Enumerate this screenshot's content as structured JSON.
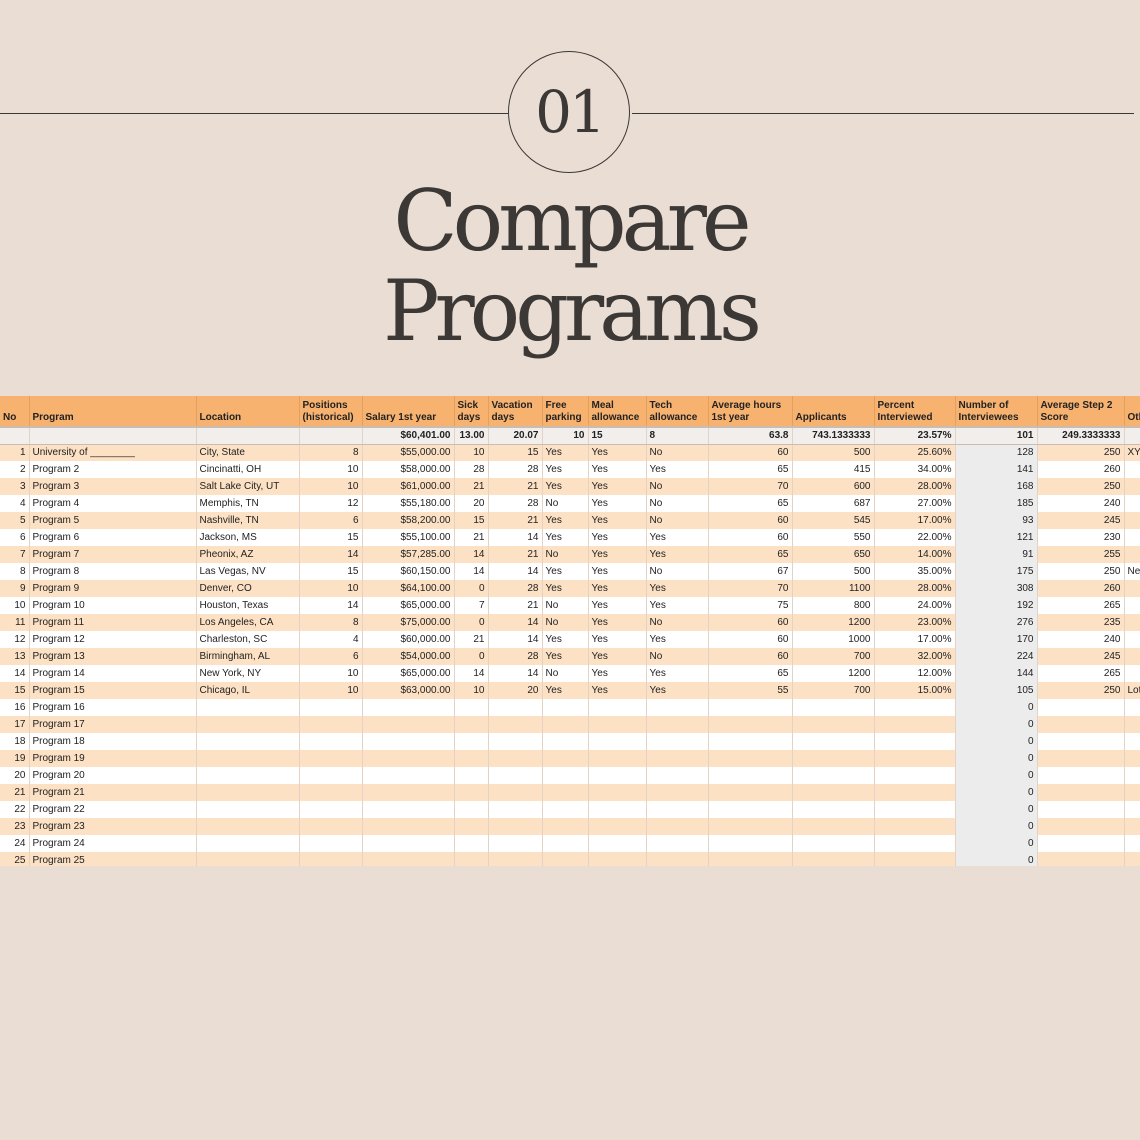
{
  "badge": "01",
  "title_line1": "Compare",
  "title_line2": "Programs",
  "table": {
    "headers": [
      "No",
      "Program",
      "Location",
      "Positions (historical)",
      "Salary 1st year",
      "Sick days",
      "Vacation days",
      "Free parking",
      "Meal allowance",
      "Tech allowance",
      "Average hours 1st year",
      "Applicants",
      "Percent Interviewed",
      "Number of Interviewees",
      "Average Step 2 Score",
      "Oth"
    ],
    "averages": [
      "",
      "",
      "",
      "",
      "$60,401.00",
      "13.00",
      "20.07",
      "10",
      "15",
      "8",
      "63.8",
      "743.1333333",
      "23.57%",
      "101",
      "249.3333333",
      ""
    ],
    "rows": [
      [
        "1",
        "University of ________",
        "City, State",
        "8",
        "$55,000.00",
        "10",
        "15",
        "Yes",
        "Yes",
        "No",
        "60",
        "500",
        "25.60%",
        "128",
        "250",
        "XY"
      ],
      [
        "2",
        "Program 2",
        "Cincinatti, OH",
        "10",
        "$58,000.00",
        "28",
        "28",
        "Yes",
        "Yes",
        "Yes",
        "65",
        "415",
        "34.00%",
        "141",
        "260",
        ""
      ],
      [
        "3",
        "Program 3",
        "Salt Lake City, UT",
        "10",
        "$61,000.00",
        "21",
        "21",
        "Yes",
        "Yes",
        "No",
        "70",
        "600",
        "28.00%",
        "168",
        "250",
        ""
      ],
      [
        "4",
        "Program 4",
        "Memphis, TN",
        "12",
        "$55,180.00",
        "20",
        "28",
        "No",
        "Yes",
        "No",
        "65",
        "687",
        "27.00%",
        "185",
        "240",
        ""
      ],
      [
        "5",
        "Program 5",
        "Nashville, TN",
        "6",
        "$58,200.00",
        "15",
        "21",
        "Yes",
        "Yes",
        "No",
        "60",
        "545",
        "17.00%",
        "93",
        "245",
        ""
      ],
      [
        "6",
        "Program 6",
        "Jackson, MS",
        "15",
        "$55,100.00",
        "21",
        "14",
        "Yes",
        "Yes",
        "Yes",
        "60",
        "550",
        "22.00%",
        "121",
        "230",
        ""
      ],
      [
        "7",
        "Program 7",
        "Pheonix, AZ",
        "14",
        "$57,285.00",
        "14",
        "21",
        "No",
        "Yes",
        "Yes",
        "65",
        "650",
        "14.00%",
        "91",
        "255",
        ""
      ],
      [
        "8",
        "Program 8",
        "Las Vegas, NV",
        "15",
        "$60,150.00",
        "14",
        "14",
        "Yes",
        "Yes",
        "No",
        "67",
        "500",
        "35.00%",
        "175",
        "250",
        "Ne"
      ],
      [
        "9",
        "Program 9",
        "Denver, CO",
        "10",
        "$64,100.00",
        "0",
        "28",
        "Yes",
        "Yes",
        "Yes",
        "70",
        "1100",
        "28.00%",
        "308",
        "260",
        ""
      ],
      [
        "10",
        "Program 10",
        "Houston, Texas",
        "14",
        "$65,000.00",
        "7",
        "21",
        "No",
        "Yes",
        "Yes",
        "75",
        "800",
        "24.00%",
        "192",
        "265",
        ""
      ],
      [
        "11",
        "Program 11",
        "Los Angeles, CA",
        "8",
        "$75,000.00",
        "0",
        "14",
        "No",
        "Yes",
        "No",
        "60",
        "1200",
        "23.00%",
        "276",
        "235",
        ""
      ],
      [
        "12",
        "Program 12",
        "Charleston, SC",
        "4",
        "$60,000.00",
        "21",
        "14",
        "Yes",
        "Yes",
        "Yes",
        "60",
        "1000",
        "17.00%",
        "170",
        "240",
        ""
      ],
      [
        "13",
        "Program 13",
        "Birmingham, AL",
        "6",
        "$54,000.00",
        "0",
        "28",
        "Yes",
        "Yes",
        "No",
        "60",
        "700",
        "32.00%",
        "224",
        "245",
        ""
      ],
      [
        "14",
        "Program 14",
        "New York, NY",
        "10",
        "$65,000.00",
        "14",
        "14",
        "No",
        "Yes",
        "Yes",
        "65",
        "1200",
        "12.00%",
        "144",
        "265",
        ""
      ],
      [
        "15",
        "Program 15",
        "Chicago, IL",
        "10",
        "$63,000.00",
        "10",
        "20",
        "Yes",
        "Yes",
        "Yes",
        "55",
        "700",
        "15.00%",
        "105",
        "250",
        "Lot"
      ],
      [
        "16",
        "Program 16",
        "",
        "",
        "",
        "",
        "",
        "",
        "",
        "",
        "",
        "",
        "",
        "0",
        "",
        ""
      ],
      [
        "17",
        "Program 17",
        "",
        "",
        "",
        "",
        "",
        "",
        "",
        "",
        "",
        "",
        "",
        "0",
        "",
        ""
      ],
      [
        "18",
        "Program 18",
        "",
        "",
        "",
        "",
        "",
        "",
        "",
        "",
        "",
        "",
        "",
        "0",
        "",
        ""
      ],
      [
        "19",
        "Program 19",
        "",
        "",
        "",
        "",
        "",
        "",
        "",
        "",
        "",
        "",
        "",
        "0",
        "",
        ""
      ],
      [
        "20",
        "Program 20",
        "",
        "",
        "",
        "",
        "",
        "",
        "",
        "",
        "",
        "",
        "",
        "0",
        "",
        ""
      ],
      [
        "21",
        "Program 21",
        "",
        "",
        "",
        "",
        "",
        "",
        "",
        "",
        "",
        "",
        "",
        "0",
        "",
        ""
      ],
      [
        "22",
        "Program 22",
        "",
        "",
        "",
        "",
        "",
        "",
        "",
        "",
        "",
        "",
        "",
        "0",
        "",
        ""
      ],
      [
        "23",
        "Program 23",
        "",
        "",
        "",
        "",
        "",
        "",
        "",
        "",
        "",
        "",
        "",
        "0",
        "",
        ""
      ],
      [
        "24",
        "Program 24",
        "",
        "",
        "",
        "",
        "",
        "",
        "",
        "",
        "",
        "",
        "",
        "0",
        "",
        ""
      ],
      [
        "25",
        "Program 25",
        "",
        "",
        "",
        "",
        "",
        "",
        "",
        "",
        "",
        "",
        "",
        "0",
        "",
        ""
      ]
    ]
  }
}
